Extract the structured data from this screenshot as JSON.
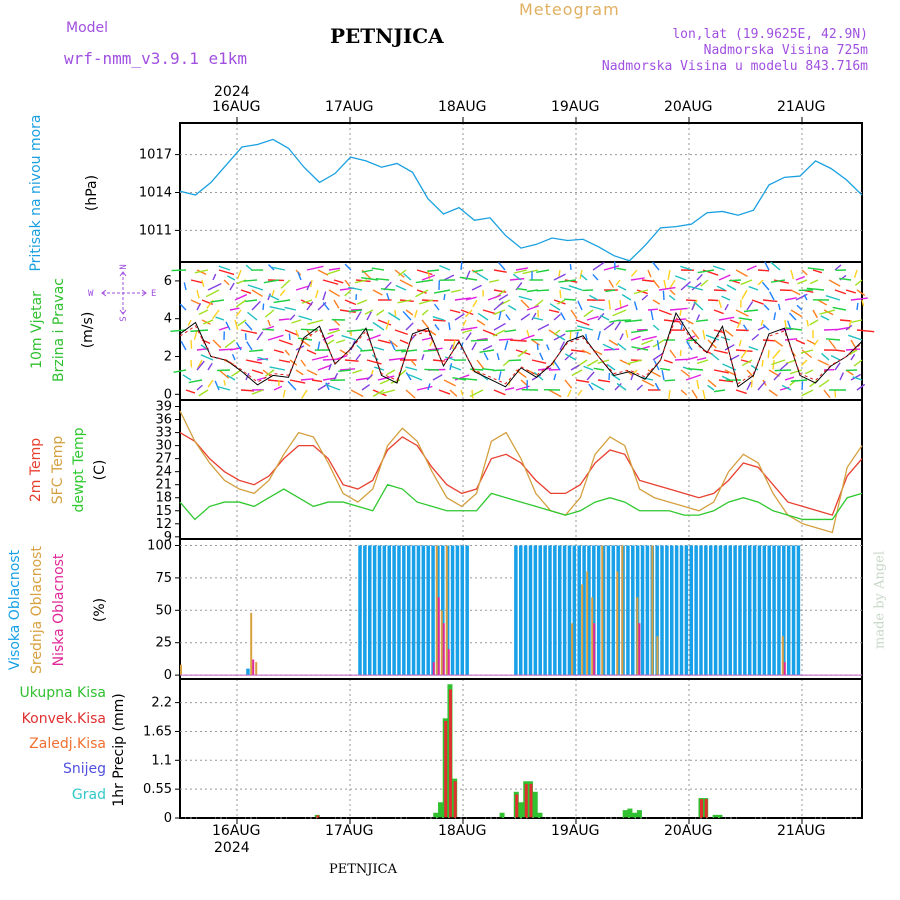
{
  "header": {
    "model_label": "Model",
    "model_name": "wrf-nmm_v3.9.1  e1km",
    "station": "PETNJICA",
    "product": "Meteogram",
    "lonlat": "lon,lat (19.9625E, 42.9N)",
    "altitude": "Nadmorska Visina 725m",
    "model_altitude": "Nadmorska Visina u modelu 843.716m"
  },
  "footer": {
    "station": "PETNJICA",
    "credit": "made by Angel"
  },
  "colors": {
    "pressure": "#1aa0e0",
    "temp": "#e84030",
    "sfc": "#d4a040",
    "dew": "#30c830",
    "high_cloud": "#18a0e8",
    "mid_cloud": "#d8a040",
    "low_cloud": "#e02898",
    "total_precip": "#30c030",
    "conv_precip": "#e03030",
    "snow_color": "#5050e0",
    "grad_color": "#30c8c8"
  },
  "chart_data": [
    {
      "type": "line",
      "panel": "pressure",
      "ylabel_main": "Pritisak na nivou mora",
      "ylabel_unit": "(hPa)",
      "yticks": [
        "1017",
        "1014",
        "1011"
      ],
      "ylim": [
        1008.5,
        1019.5
      ],
      "x_top_year": "2024",
      "x_top_labels": [
        "16AUG",
        "17AUG",
        "18AUG",
        "19AUG",
        "20AUG",
        "21AUG"
      ],
      "x_hours": [
        0,
        3,
        6,
        9,
        12,
        15,
        18,
        21,
        24,
        27,
        30,
        33,
        36,
        39,
        42,
        45,
        48,
        51,
        54,
        57,
        60,
        63,
        66,
        69,
        72,
        75,
        78,
        81,
        84,
        87,
        90,
        93,
        96,
        99,
        102,
        105,
        108,
        111,
        114,
        117,
        120,
        123,
        126,
        129,
        132,
        135,
        138,
        141,
        144
      ],
      "series": [
        {
          "values": [
            1014.1,
            1013.8,
            1014.8,
            1016.2,
            1017.6,
            1017.8,
            1018.2,
            1017.5,
            1016.0,
            1014.8,
            1015.5,
            1016.8,
            1016.5,
            1016.0,
            1016.3,
            1015.6,
            1013.5,
            1012.3,
            1012.8,
            1011.8,
            1012.0,
            1010.6,
            1009.6,
            1009.9,
            1010.4,
            1010.2,
            1010.3,
            1009.7,
            1009.0,
            1008.6,
            1009.8,
            1011.2,
            1011.3,
            1011.5,
            1012.4,
            1012.5,
            1012.2,
            1012.6,
            1014.6,
            1015.2,
            1015.3,
            1016.5,
            1015.9,
            1015.0,
            1013.8
          ]
        }
      ]
    },
    {
      "type": "line",
      "panel": "wind",
      "ylabel_main": "10m Vjetar",
      "ylabel_sub": "Brzina i Pravac",
      "ylabel_unit": "(m/s)",
      "compass": {
        "n": "N",
        "e": "E",
        "w": "W",
        "s": "S"
      },
      "yticks": [
        "6",
        "4",
        "2",
        "0"
      ],
      "ylim": [
        -0.3,
        7.0
      ],
      "series": [
        {
          "values": [
            3.2,
            3.8,
            2.0,
            1.8,
            1.2,
            0.5,
            1.0,
            0.9,
            3.0,
            3.6,
            1.6,
            2.4,
            3.5,
            1.0,
            0.6,
            3.2,
            3.5,
            1.5,
            2.8,
            1.2,
            0.8,
            0.4,
            1.4,
            0.9,
            1.6,
            2.8,
            3.1,
            2.0,
            1.0,
            1.2,
            0.8,
            1.8,
            4.3,
            3.0,
            2.2,
            3.6,
            0.4,
            1.0,
            3.2,
            3.5,
            1.0,
            0.6,
            1.5,
            2.0,
            2.8
          ]
        }
      ]
    },
    {
      "type": "line",
      "panel": "temperature",
      "ylabel_lines": [
        "2m Temp",
        "SFC Temp",
        "dewpt Temp"
      ],
      "ylabel_unit": "(C)",
      "yticks": [
        "39",
        "36",
        "33",
        "30",
        "27",
        "24",
        "21",
        "18",
        "15",
        "12",
        "9"
      ],
      "ylim": [
        8.5,
        40.5
      ],
      "series": [
        {
          "name": "2m Temp",
          "values": [
            33,
            31,
            27,
            24,
            22,
            21,
            23,
            27,
            30,
            30,
            27,
            21,
            20,
            22,
            29,
            32,
            30,
            25,
            21,
            19,
            20,
            27,
            28,
            26,
            22,
            19,
            19,
            21,
            26,
            29,
            28,
            22,
            21,
            20,
            19,
            18,
            19,
            22,
            26,
            25,
            21,
            17,
            16,
            15,
            14,
            23,
            27
          ]
        },
        {
          "name": "SFC Temp",
          "values": [
            38,
            31,
            26,
            22,
            20,
            19,
            22,
            28,
            33,
            32,
            26,
            19,
            17,
            20,
            30,
            34,
            31,
            24,
            18,
            16,
            19,
            31,
            33,
            27,
            19,
            15,
            14,
            18,
            28,
            32,
            30,
            20,
            18,
            17,
            16,
            15,
            17,
            24,
            28,
            26,
            19,
            14,
            12,
            11,
            10,
            25,
            30
          ]
        },
        {
          "name": "dewpt Temp",
          "values": [
            17,
            13,
            16,
            17,
            17,
            16,
            18,
            20,
            18,
            16,
            17,
            17,
            16,
            15,
            21,
            20,
            17,
            16,
            15,
            15,
            15,
            19,
            18,
            17,
            16,
            15,
            14,
            15,
            17,
            18,
            17,
            15,
            15,
            15,
            14,
            14,
            15,
            17,
            18,
            17,
            15,
            14,
            13,
            13,
            13,
            18,
            19
          ]
        }
      ]
    },
    {
      "type": "bar",
      "panel": "cloud",
      "ylabel_lines": [
        "Visoka Oblacnost",
        "Srednja Oblacnost",
        "Niska Oblacnost"
      ],
      "ylabel_unit": "(%)",
      "yticks": [
        "100",
        "75",
        "50",
        "25",
        "0"
      ],
      "ylim": [
        -3,
        105
      ],
      "series": [
        {
          "name": "Visoka Oblacnost",
          "values": [
            0,
            0,
            0,
            0,
            0,
            0,
            0,
            0,
            0,
            0,
            0,
            0,
            0,
            0,
            5,
            0,
            0,
            0,
            0,
            0,
            0,
            0,
            0,
            0,
            0,
            0,
            0,
            0,
            0,
            0,
            0,
            0,
            0,
            0,
            0,
            0,
            0,
            100,
            100,
            100,
            100,
            100,
            100,
            100,
            100,
            100,
            100,
            100,
            100,
            100,
            100,
            100,
            100,
            100,
            100,
            100,
            100,
            100,
            100,
            100,
            0,
            0,
            0,
            0,
            0,
            0,
            0,
            0,
            0,
            100,
            100,
            100,
            100,
            100,
            100,
            100,
            100,
            100,
            100,
            100,
            100,
            100,
            100,
            100,
            100,
            100,
            100,
            100,
            100,
            100,
            100,
            100,
            100,
            100,
            100,
            100,
            100,
            100,
            100,
            100,
            100,
            100,
            100,
            100,
            100,
            100,
            100,
            100,
            100,
            100,
            100,
            100,
            100,
            100,
            100,
            100,
            100,
            100,
            100,
            100,
            100,
            100,
            100,
            100,
            100,
            100,
            100,
            100,
            0,
            0,
            0,
            0,
            0,
            0,
            0,
            0,
            0,
            0,
            0,
            0,
            0
          ]
        },
        {
          "name": "Srednja Oblacnost",
          "values": [
            8,
            0,
            0,
            0,
            0,
            0,
            0,
            0,
            0,
            0,
            0,
            0,
            0,
            0,
            48,
            10,
            0,
            0,
            0,
            0,
            0,
            0,
            0,
            0,
            0,
            0,
            0,
            0,
            0,
            0,
            0,
            0,
            0,
            0,
            0,
            0,
            0,
            0,
            0,
            0,
            0,
            0,
            0,
            0,
            0,
            0,
            0,
            0,
            0,
            0,
            0,
            100,
            50,
            100,
            0,
            0,
            0,
            0,
            0,
            0,
            0,
            0,
            0,
            0,
            0,
            0,
            0,
            0,
            0,
            0,
            0,
            0,
            0,
            0,
            0,
            0,
            0,
            0,
            40,
            0,
            70,
            80,
            60,
            0,
            100,
            0,
            0,
            80,
            100,
            0,
            0,
            60,
            0,
            0,
            100,
            30,
            0,
            0,
            0,
            0,
            0,
            0,
            0,
            0,
            0,
            0,
            0,
            0,
            0,
            0,
            0,
            0,
            0,
            0,
            0,
            0,
            0,
            0,
            0,
            0,
            30,
            0,
            0,
            0,
            0,
            0,
            0,
            0,
            0,
            0,
            0,
            0,
            0,
            0,
            0,
            0,
            0
          ]
        },
        {
          "name": "Niska Oblacnost",
          "values": [
            0,
            0,
            0,
            0,
            0,
            0,
            0,
            0,
            0,
            0,
            0,
            0,
            0,
            0,
            12,
            0,
            0,
            0,
            0,
            0,
            0,
            0,
            0,
            0,
            0,
            0,
            0,
            0,
            0,
            0,
            0,
            0,
            0,
            0,
            0,
            0,
            0,
            0,
            0,
            0,
            0,
            0,
            0,
            0,
            0,
            0,
            0,
            0,
            0,
            0,
            10,
            60,
            40,
            20,
            0,
            0,
            0,
            0,
            0,
            0,
            0,
            0,
            0,
            0,
            0,
            0,
            0,
            0,
            0,
            0,
            0,
            0,
            0,
            0,
            0,
            0,
            0,
            0,
            0,
            0,
            0,
            0,
            40,
            0,
            0,
            0,
            0,
            0,
            0,
            0,
            0,
            40,
            0,
            0,
            0,
            0,
            0,
            0,
            0,
            0,
            0,
            0,
            0,
            0,
            0,
            0,
            0,
            0,
            0,
            0,
            0,
            0,
            0,
            0,
            0,
            0,
            0,
            0,
            0,
            0,
            10,
            0,
            0,
            0,
            0,
            0,
            0,
            0,
            0,
            0,
            0,
            0,
            0,
            0,
            0,
            0,
            0
          ]
        }
      ]
    },
    {
      "type": "bar",
      "panel": "precip",
      "legend": [
        "Ukupna Kisa",
        "Konvek.Kisa",
        "Zaledj.Kisa",
        "Snijeg",
        "Grad"
      ],
      "ylabel_unit": "1hr Precip (mm)",
      "yticks": [
        "2.2",
        "1.65",
        "1.1",
        "0.55",
        "0"
      ],
      "ylim": [
        0,
        2.65
      ],
      "x_bottom_labels": [
        "16AUG",
        "17AUG",
        "18AUG",
        "19AUG",
        "20AUG",
        "21AUG"
      ],
      "x_bottom_year": "2024",
      "series": [
        {
          "name": "Ukupna Kisa",
          "points": [
            [
              29,
              0.06
            ],
            [
              54,
              0.1
            ],
            [
              55,
              0.3
            ],
            [
              56,
              1.9
            ],
            [
              57,
              2.55
            ],
            [
              58,
              0.75
            ],
            [
              68,
              0.1
            ],
            [
              71,
              0.5
            ],
            [
              72,
              0.3
            ],
            [
              73,
              0.7
            ],
            [
              74,
              0.7
            ],
            [
              75,
              0.5
            ],
            [
              76,
              0.1
            ],
            [
              94,
              0.15
            ],
            [
              95,
              0.18
            ],
            [
              96,
              0.1
            ],
            [
              97,
              0.15
            ],
            [
              110,
              0.38
            ],
            [
              111,
              0.38
            ],
            [
              113,
              0.06
            ],
            [
              114,
              0.06
            ]
          ]
        },
        {
          "name": "Konvek.Kisa",
          "points": [
            [
              29,
              0.05
            ],
            [
              56,
              1.85
            ],
            [
              57,
              2.45
            ],
            [
              58,
              0.7
            ],
            [
              71,
              0.45
            ],
            [
              73,
              0.65
            ],
            [
              74,
              0.65
            ],
            [
              110,
              0.36
            ],
            [
              111,
              0.36
            ]
          ]
        }
      ]
    }
  ]
}
